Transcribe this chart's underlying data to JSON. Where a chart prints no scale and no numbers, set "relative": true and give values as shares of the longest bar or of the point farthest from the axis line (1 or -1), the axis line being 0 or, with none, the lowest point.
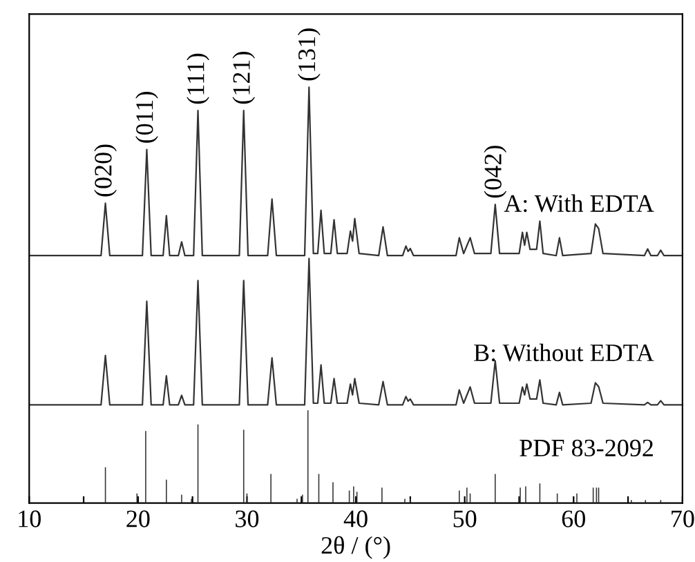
{
  "chart_data": {
    "type": "line",
    "relative": true,
    "xlabel": "2θ / (°)",
    "xlim": [
      10,
      70
    ],
    "xticks": [
      10,
      {
        "value": 15,
        "label": null
      },
      20,
      {
        "value": 25,
        "label": null
      },
      30,
      {
        "value": 35,
        "label": null
      },
      40,
      {
        "value": 45,
        "label": null
      },
      50,
      {
        "value": 55,
        "label": null
      },
      60,
      {
        "value": 65,
        "label": null
      },
      70
    ],
    "tick_labels": "x",
    "grid": false,
    "legend": false,
    "marker": "none",
    "line_style": "solid",
    "series": [
      {
        "name": "A: With EDTA",
        "color": "#333333",
        "x": [
          10,
          16.6,
          17.0,
          17.4,
          20.4,
          20.8,
          21.2,
          22.3,
          22.6,
          22.9,
          23.7,
          24.0,
          24.3,
          25.1,
          25.5,
          25.9,
          29.3,
          29.7,
          30.1,
          31.9,
          32.3,
          32.7,
          35.3,
          35.7,
          36.1,
          36.5,
          36.8,
          37.1,
          37.7,
          38.0,
          38.3,
          39.2,
          39.5,
          39.7,
          39.9,
          40.3,
          42.1,
          42.5,
          42.9,
          44.3,
          44.6,
          44.8,
          45.0,
          45.3,
          49.2,
          49.5,
          49.9,
          50.5,
          50.9,
          52.4,
          52.8,
          53.2,
          55.0,
          55.3,
          55.5,
          55.7,
          56.0,
          56.6,
          56.9,
          57.2,
          58.4,
          58.7,
          59.0,
          61.6,
          62.0,
          62.3,
          62.7,
          66.5,
          66.8,
          67.1,
          67.7,
          68.0,
          68.3,
          70
        ],
        "values": [
          0.595,
          0.595,
          0.721,
          0.595,
          0.595,
          0.85,
          0.595,
          0.595,
          0.691,
          0.595,
          0.595,
          0.628,
          0.595,
          0.595,
          0.944,
          0.595,
          0.595,
          0.944,
          0.595,
          0.595,
          0.731,
          0.595,
          0.595,
          1.0,
          0.6,
          0.6,
          0.704,
          0.6,
          0.6,
          0.681,
          0.6,
          0.6,
          0.654,
          0.63,
          0.684,
          0.6,
          0.595,
          0.664,
          0.595,
          0.595,
          0.618,
          0.605,
          0.612,
          0.595,
          0.595,
          0.638,
          0.6,
          0.638,
          0.6,
          0.6,
          0.718,
          0.6,
          0.6,
          0.651,
          0.62,
          0.651,
          0.61,
          0.61,
          0.678,
          0.6,
          0.595,
          0.638,
          0.595,
          0.6,
          0.671,
          0.66,
          0.6,
          0.595,
          0.611,
          0.595,
          0.595,
          0.608,
          0.595,
          0.595
        ]
      },
      {
        "name": "B: Without EDTA",
        "color": "#333333",
        "x": [
          10,
          16.6,
          17.0,
          17.4,
          20.4,
          20.8,
          21.2,
          22.3,
          22.6,
          22.9,
          23.7,
          24.0,
          24.3,
          25.1,
          25.5,
          25.9,
          29.3,
          29.7,
          30.1,
          31.9,
          32.3,
          32.7,
          35.3,
          35.7,
          36.1,
          36.5,
          36.8,
          37.1,
          37.7,
          38.0,
          38.3,
          39.2,
          39.5,
          39.7,
          39.9,
          40.3,
          42.1,
          42.5,
          42.9,
          44.3,
          44.6,
          44.8,
          45.0,
          45.3,
          49.2,
          49.5,
          49.9,
          50.5,
          50.9,
          52.4,
          52.8,
          53.2,
          55.0,
          55.3,
          55.5,
          55.7,
          56.0,
          56.6,
          56.9,
          57.2,
          58.4,
          58.7,
          59.0,
          61.6,
          62.0,
          62.3,
          62.7,
          66.5,
          66.8,
          67.1,
          67.7,
          68.0,
          68.3,
          70
        ],
        "values": [
          0.236,
          0.236,
          0.355,
          0.236,
          0.236,
          0.485,
          0.236,
          0.236,
          0.306,
          0.236,
          0.236,
          0.259,
          0.236,
          0.236,
          0.535,
          0.236,
          0.236,
          0.535,
          0.236,
          0.236,
          0.349,
          0.236,
          0.236,
          0.588,
          0.24,
          0.24,
          0.332,
          0.24,
          0.24,
          0.299,
          0.24,
          0.24,
          0.286,
          0.26,
          0.299,
          0.24,
          0.236,
          0.292,
          0.236,
          0.236,
          0.256,
          0.245,
          0.25,
          0.236,
          0.236,
          0.272,
          0.24,
          0.279,
          0.24,
          0.24,
          0.342,
          0.24,
          0.24,
          0.279,
          0.26,
          0.286,
          0.25,
          0.25,
          0.296,
          0.24,
          0.236,
          0.266,
          0.236,
          0.24,
          0.289,
          0.28,
          0.24,
          0.236,
          0.242,
          0.236,
          0.236,
          0.246,
          0.236,
          0.236
        ]
      },
      {
        "name": "PDF 83-2092",
        "type": "bar",
        "color": "#333333",
        "x": [
          17.0,
          19.9,
          20.7,
          22.6,
          24.0,
          24.9,
          25.5,
          29.7,
          30.0,
          32.2,
          34.6,
          35.1,
          35.6,
          36.6,
          37.9,
          39.4,
          39.8,
          40.1,
          42.4,
          44.5,
          45.0,
          49.5,
          50.2,
          50.5,
          52.8,
          55.1,
          55.6,
          56.9,
          58.5,
          60.3,
          61.8,
          62.1,
          62.3,
          65.3,
          66.6,
          68.0
        ],
        "values": [
          0.086,
          0.023,
          0.173,
          0.056,
          0.02,
          0.01,
          0.189,
          0.176,
          0.023,
          0.07,
          0.01,
          0.02,
          0.223,
          0.07,
          0.05,
          0.03,
          0.04,
          0.027,
          0.037,
          0.01,
          0.01,
          0.03,
          0.037,
          0.023,
          0.07,
          0.037,
          0.04,
          0.047,
          0.023,
          0.023,
          0.037,
          0.037,
          0.037,
          0.007,
          0.007,
          0.007
        ]
      }
    ],
    "annotations": [
      {
        "text": "(020)",
        "x": 17.0,
        "y": 0.721
      },
      {
        "text": "(011)",
        "x": 20.8,
        "y": 0.85
      },
      {
        "text": "(111)",
        "x": 25.5,
        "y": 0.944
      },
      {
        "text": "(121)",
        "x": 29.7,
        "y": 0.944
      },
      {
        "text": "(131)",
        "x": 35.7,
        "y": 1.0
      },
      {
        "text": "(042)",
        "x": 52.8,
        "y": 0.718
      }
    ]
  }
}
